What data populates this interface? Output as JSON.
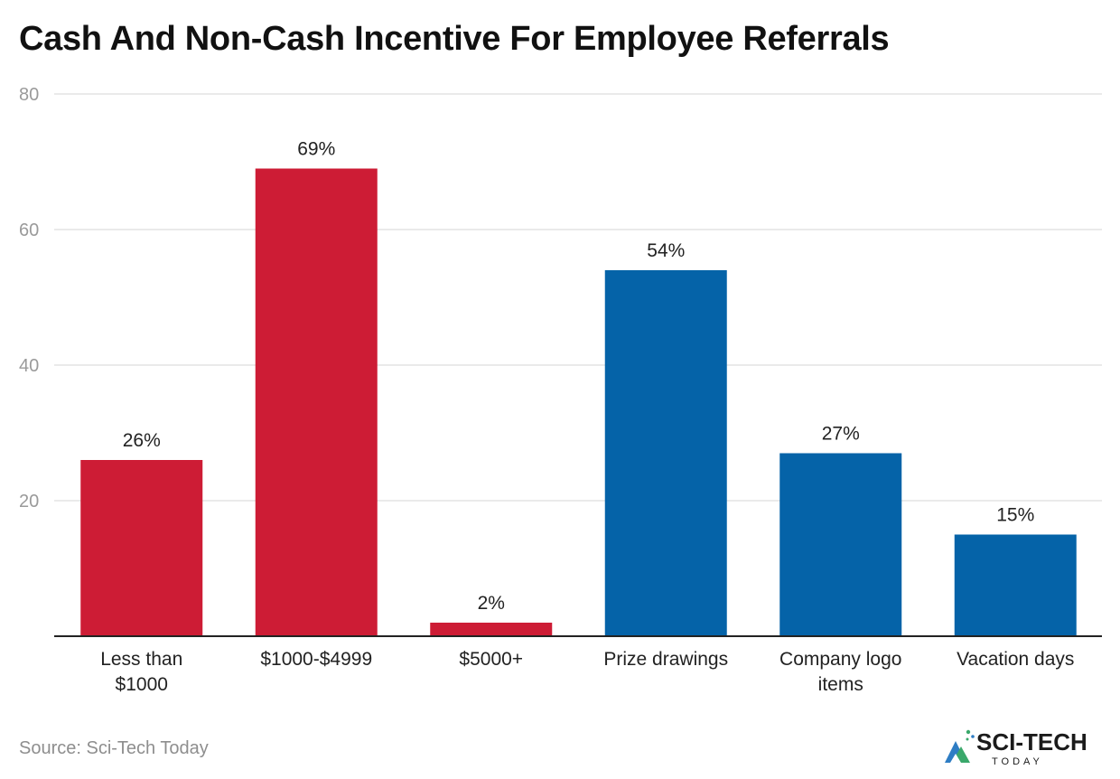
{
  "chart_data": {
    "type": "bar",
    "title": "Cash And Non-Cash Incentive For Employee Referrals",
    "categories": [
      [
        "Less than",
        "$1000"
      ],
      [
        "$1000-$4999"
      ],
      [
        "$5000+"
      ],
      [
        "Prize drawings"
      ],
      [
        "Company logo",
        "items"
      ],
      [
        "Vacation days"
      ]
    ],
    "values": [
      26,
      69,
      2,
      54,
      27,
      15
    ],
    "data_labels": [
      "26%",
      "69%",
      "2%",
      "54%",
      "27%",
      "15%"
    ],
    "bar_colors": [
      "#cd1c35",
      "#cd1c35",
      "#cd1c35",
      "#0563a8",
      "#0563a8",
      "#0563a8"
    ],
    "ylim": [
      0,
      80
    ],
    "yticks": [
      20,
      40,
      60,
      80
    ],
    "xlabel": "",
    "ylabel": "",
    "grid": true,
    "legend": "none"
  },
  "footer": {
    "source": "Source: Sci-Tech Today",
    "logo_text": "SCI-TECH",
    "logo_subtext": "TODAY"
  },
  "colors": {
    "cash": "#cd1c35",
    "non_cash": "#0563a8",
    "grid": "#e3e3e3",
    "axis": "#222222"
  }
}
